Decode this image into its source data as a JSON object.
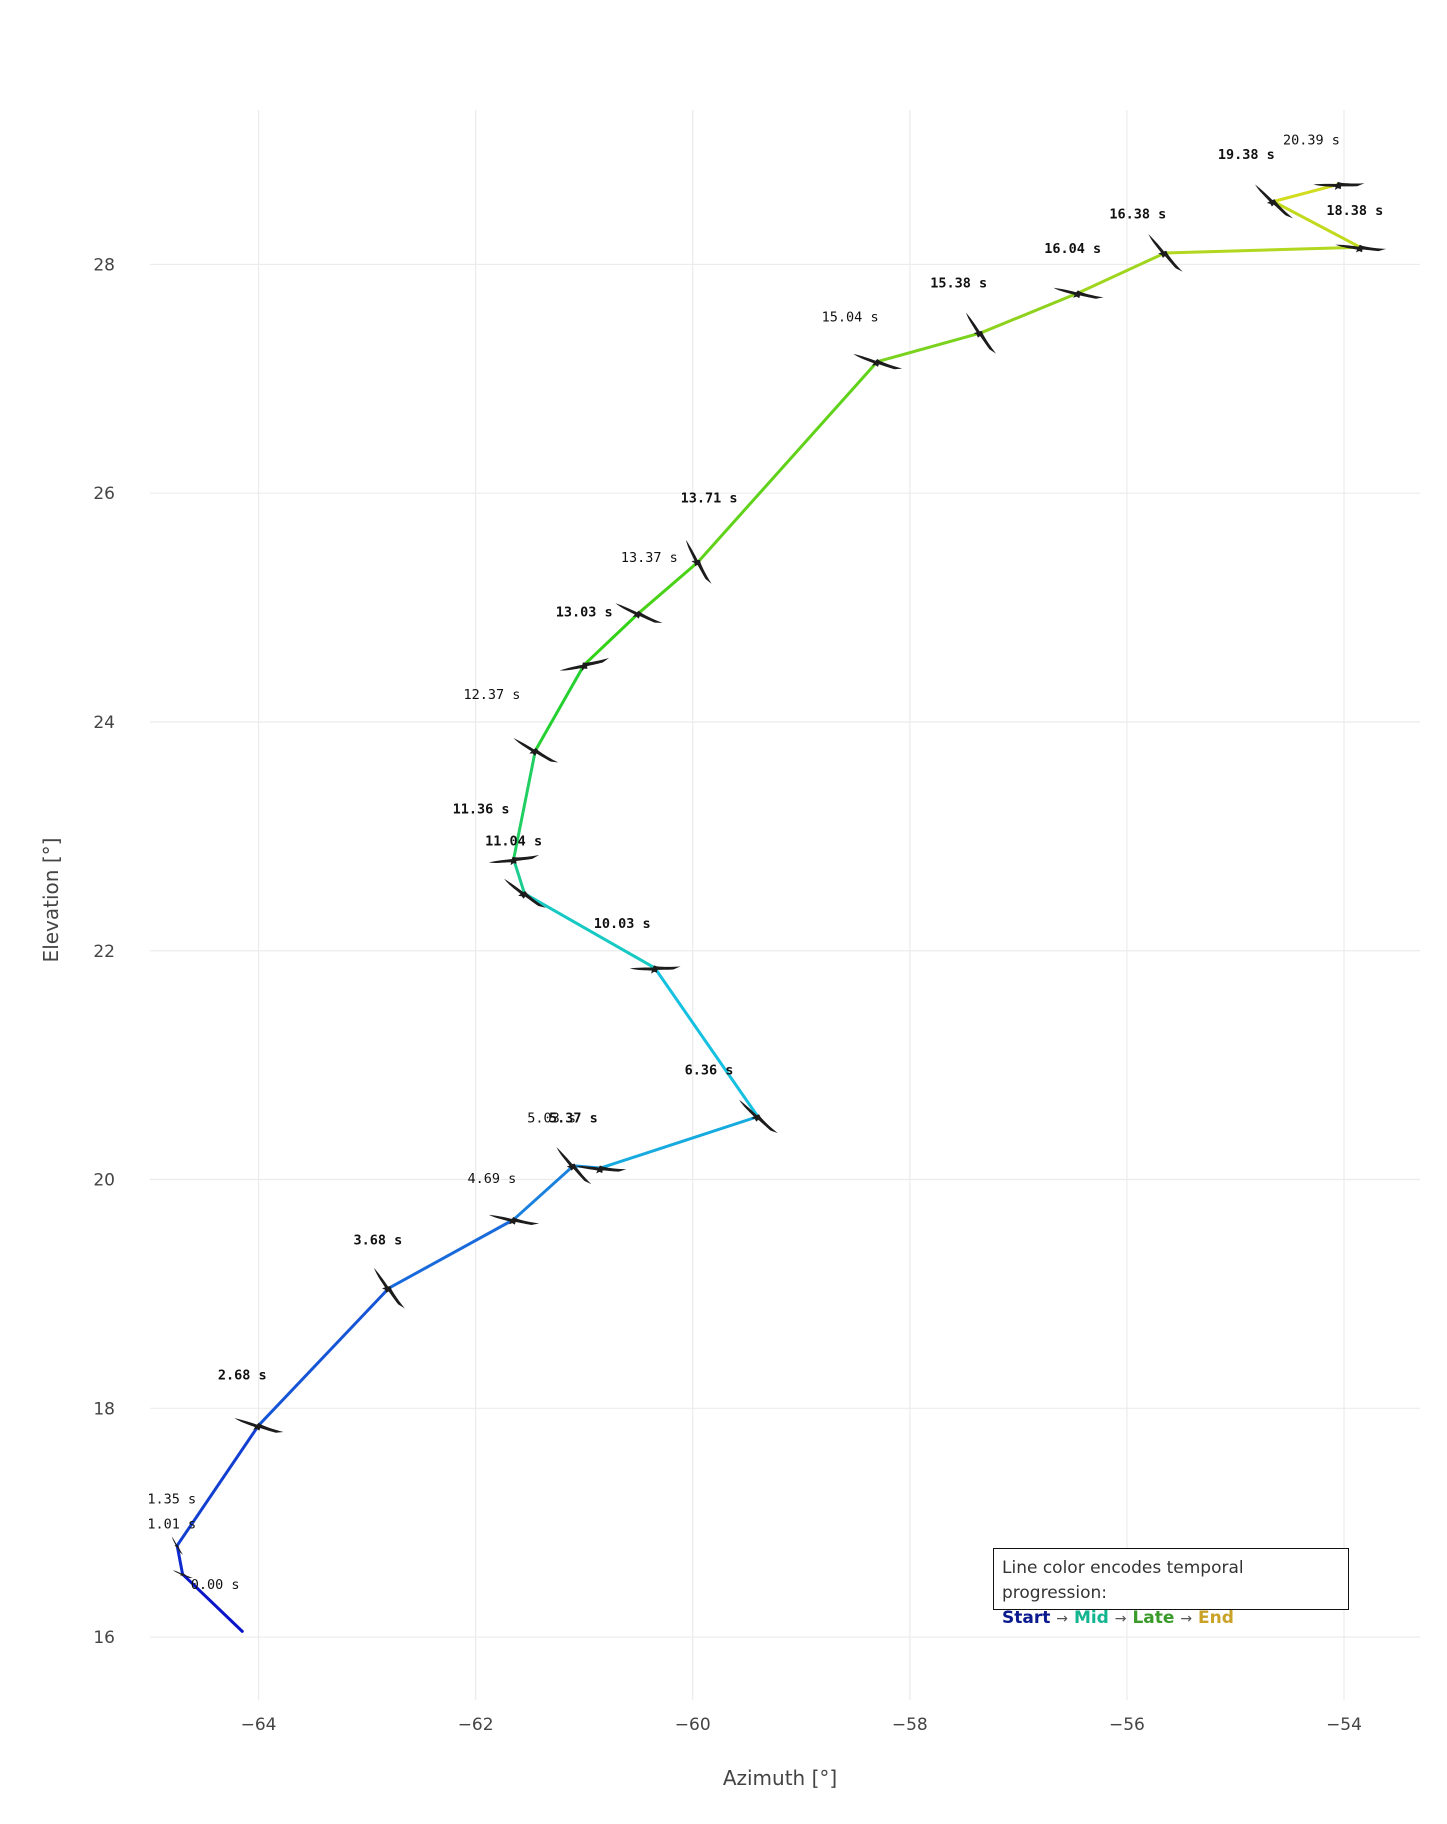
{
  "chart_data": {
    "type": "line",
    "xlabel": "Azimuth [°]",
    "ylabel": "Elevation [°]",
    "xlim": [
      -65.0,
      -53.3
    ],
    "ylim": [
      15.45,
      29.35
    ],
    "xticks": [
      -64,
      -62,
      -60,
      -58,
      -56,
      -54
    ],
    "yticks": [
      16,
      18,
      20,
      22,
      24,
      26,
      28
    ],
    "xtick_labels": [
      "−64",
      "−62",
      "−60",
      "−58",
      "−56",
      "−54"
    ],
    "ytick_labels": [
      "16",
      "18",
      "20",
      "22",
      "24",
      "26",
      "28"
    ],
    "grid": true,
    "marker": "bird-silhouette-icon",
    "color_scale": {
      "meaning": "temporal progression",
      "stops": [
        "#0a14c8",
        "#1a6fdc",
        "#14c8e0",
        "#28d214",
        "#8cd21e",
        "#d2dc1e"
      ]
    },
    "points": [
      {
        "x": -64.15,
        "y": 16.05,
        "t": ""
      },
      {
        "x": -64.7,
        "y": 16.55,
        "t": "0.00 s"
      },
      {
        "x": -64.75,
        "y": 16.8,
        "t": "1.01 s"
      },
      {
        "x": -64.0,
        "y": 17.85,
        "t": "2.68 s"
      },
      {
        "x": -62.8,
        "y": 19.05,
        "t": "3.68 s"
      },
      {
        "x": -61.65,
        "y": 19.65,
        "t": "4.69 s"
      },
      {
        "x": -61.1,
        "y": 20.12,
        "t": "5.03 s"
      },
      {
        "x": -60.85,
        "y": 20.1,
        "t": "5.37 s"
      },
      {
        "x": -59.4,
        "y": 20.55,
        "t": "6.36 s"
      },
      {
        "x": -60.35,
        "y": 21.85,
        "t": "10.03 s"
      },
      {
        "x": -61.55,
        "y": 22.5,
        "t": "11.04 s"
      },
      {
        "x": -61.65,
        "y": 22.8,
        "t": "11.36 s"
      },
      {
        "x": -61.45,
        "y": 23.75,
        "t": "12.37 s"
      },
      {
        "x": -61.0,
        "y": 24.5,
        "t": "13.03 s"
      },
      {
        "x": -60.5,
        "y": 24.95,
        "t": "13.37 s"
      },
      {
        "x": -59.95,
        "y": 25.4,
        "t": "13.71 s"
      },
      {
        "x": -58.3,
        "y": 27.15,
        "t": "15.04 s"
      },
      {
        "x": -57.35,
        "y": 27.4,
        "t": "15.38 s"
      },
      {
        "x": -56.45,
        "y": 27.75,
        "t": "16.04 s"
      },
      {
        "x": -55.65,
        "y": 28.1,
        "t": "16.38 s"
      },
      {
        "x": -53.85,
        "y": 28.15,
        "t": "18.38 s"
      },
      {
        "x": -54.65,
        "y": 28.55,
        "t": "19.38 s"
      },
      {
        "x": -54.05,
        "y": 28.7,
        "t": "20.39 s"
      }
    ],
    "annotations": [
      {
        "text": "1.35 s",
        "x": -64.8,
        "y": 17.17,
        "bold": false
      },
      {
        "text": "0.00 s",
        "x": -64.4,
        "y": 16.42,
        "bold": false
      },
      {
        "text": "1.01 s",
        "x": -64.8,
        "y": 16.95,
        "bold": false
      },
      {
        "text": "2.68 s",
        "x": -64.15,
        "y": 18.25,
        "bold": true
      },
      {
        "text": "3.68 s",
        "x": -62.9,
        "y": 19.43,
        "bold": true
      },
      {
        "text": "4.69 s",
        "x": -61.85,
        "y": 19.97,
        "bold": false
      },
      {
        "text": "5.03 s",
        "x": -61.3,
        "y": 20.5,
        "bold": false
      },
      {
        "text": "5.37 s",
        "x": -61.1,
        "y": 20.5,
        "bold": true
      },
      {
        "text": "6.36 s",
        "x": -59.85,
        "y": 20.92,
        "bold": true
      },
      {
        "text": "10.03 s",
        "x": -60.65,
        "y": 22.2,
        "bold": true
      },
      {
        "text": "11.04 s",
        "x": -61.65,
        "y": 22.92,
        "bold": true
      },
      {
        "text": "11.36 s",
        "x": -61.95,
        "y": 23.2,
        "bold": true
      },
      {
        "text": "12.37 s",
        "x": -61.85,
        "y": 24.2,
        "bold": false
      },
      {
        "text": "13.03 s",
        "x": -61.0,
        "y": 24.92,
        "bold": true
      },
      {
        "text": "13.37 s",
        "x": -60.4,
        "y": 25.4,
        "bold": false
      },
      {
        "text": "13.71 s",
        "x": -59.85,
        "y": 25.92,
        "bold": true
      },
      {
        "text": "15.04 s",
        "x": -58.55,
        "y": 27.5,
        "bold": false
      },
      {
        "text": "15.38 s",
        "x": -57.55,
        "y": 27.8,
        "bold": true
      },
      {
        "text": "16.04 s",
        "x": -56.5,
        "y": 28.1,
        "bold": true
      },
      {
        "text": "16.38 s",
        "x": -55.9,
        "y": 28.4,
        "bold": true
      },
      {
        "text": "18.38 s",
        "x": -53.9,
        "y": 28.43,
        "bold": true
      },
      {
        "text": "19.38 s",
        "x": -54.9,
        "y": 28.92,
        "bold": true
      },
      {
        "text": "20.39 s",
        "x": -54.3,
        "y": 29.05,
        "bold": false
      }
    ],
    "legend": {
      "position": "bottom-right",
      "line1": "Line color encodes temporal progression:",
      "items": [
        {
          "label": "Start",
          "color": "#0b1a8f"
        },
        {
          "label": "Mid",
          "color": "#12b58f"
        },
        {
          "label": "Late",
          "color": "#3a9a2a"
        },
        {
          "label": "End",
          "color": "#c9a227"
        }
      ],
      "separator": "→"
    }
  }
}
